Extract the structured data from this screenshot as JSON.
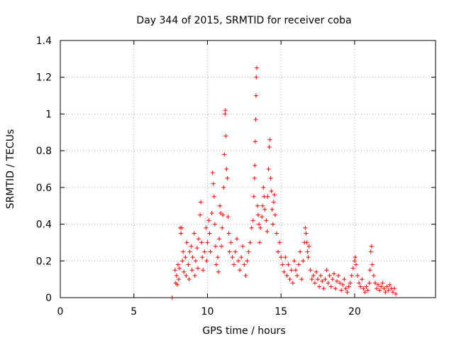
{
  "chart_data": {
    "type": "scatter",
    "title": "Day 344 of 2015, SRMTID for receiver coba",
    "xlabel": "GPS time / hours",
    "ylabel": "SRMTID / TECUs",
    "xlim": [
      0,
      25.5
    ],
    "ylim": [
      0,
      1.4
    ],
    "xticks": [
      0,
      5,
      10,
      15,
      20
    ],
    "xtick_labels": [
      "0",
      "5",
      "10",
      "15",
      "20"
    ],
    "yticks": [
      0,
      0.2,
      0.4,
      0.6,
      0.8,
      1.0,
      1.2,
      1.4
    ],
    "ytick_labels": [
      "0",
      "0.2",
      "0.4",
      "0.6",
      "0.8",
      "1",
      "1.2",
      "1.4"
    ],
    "grid": true,
    "marker": "+",
    "color": "#ff0000",
    "series": [
      {
        "name": "SRMTID",
        "points": [
          [
            7.6,
            0.0
          ],
          [
            7.8,
            0.15
          ],
          [
            7.85,
            0.08
          ],
          [
            7.9,
            0.12
          ],
          [
            7.95,
            0.07
          ],
          [
            8.0,
            0.18
          ],
          [
            8.05,
            0.1
          ],
          [
            8.1,
            0.16
          ],
          [
            8.15,
            0.38
          ],
          [
            8.2,
            0.35
          ],
          [
            8.25,
            0.38
          ],
          [
            8.3,
            0.2
          ],
          [
            8.35,
            0.25
          ],
          [
            8.4,
            0.14
          ],
          [
            8.5,
            0.22
          ],
          [
            8.55,
            0.12
          ],
          [
            8.6,
            0.3
          ],
          [
            8.7,
            0.18
          ],
          [
            8.75,
            0.1
          ],
          [
            8.8,
            0.25
          ],
          [
            8.9,
            0.28
          ],
          [
            8.95,
            0.15
          ],
          [
            9.0,
            0.22
          ],
          [
            9.1,
            0.35
          ],
          [
            9.15,
            0.12
          ],
          [
            9.2,
            0.2
          ],
          [
            9.3,
            0.27
          ],
          [
            9.35,
            0.16
          ],
          [
            9.4,
            0.32
          ],
          [
            9.5,
            0.45
          ],
          [
            9.55,
            0.52
          ],
          [
            9.6,
            0.3
          ],
          [
            9.65,
            0.22
          ],
          [
            9.7,
            0.15
          ],
          [
            9.8,
            0.25
          ],
          [
            9.9,
            0.38
          ],
          [
            9.95,
            0.2
          ],
          [
            10.0,
            0.3
          ],
          [
            10.1,
            0.42
          ],
          [
            10.15,
            0.35
          ],
          [
            10.2,
            0.25
          ],
          [
            10.3,
            0.46
          ],
          [
            10.35,
            0.68
          ],
          [
            10.4,
            0.62
          ],
          [
            10.45,
            0.55
          ],
          [
            10.5,
            0.4
          ],
          [
            10.55,
            0.28
          ],
          [
            10.6,
            0.18
          ],
          [
            10.7,
            0.22
          ],
          [
            10.75,
            0.14
          ],
          [
            10.8,
            0.32
          ],
          [
            10.85,
            0.5
          ],
          [
            10.9,
            0.46
          ],
          [
            10.95,
            0.28
          ],
          [
            11.0,
            0.38
          ],
          [
            11.05,
            0.45
          ],
          [
            11.1,
            0.6
          ],
          [
            11.15,
            0.78
          ],
          [
            11.2,
            1.0
          ],
          [
            11.22,
            1.02
          ],
          [
            11.25,
            0.88
          ],
          [
            11.3,
            0.7
          ],
          [
            11.35,
            0.65
          ],
          [
            11.4,
            0.44
          ],
          [
            11.45,
            0.35
          ],
          [
            11.5,
            0.25
          ],
          [
            11.6,
            0.3
          ],
          [
            11.7,
            0.22
          ],
          [
            11.8,
            0.18
          ],
          [
            11.9,
            0.25
          ],
          [
            12.0,
            0.32
          ],
          [
            12.1,
            0.2
          ],
          [
            12.2,
            0.15
          ],
          [
            12.3,
            0.22
          ],
          [
            12.4,
            0.28
          ],
          [
            12.5,
            0.18
          ],
          [
            12.6,
            0.12
          ],
          [
            12.7,
            0.2
          ],
          [
            12.8,
            0.25
          ],
          [
            12.9,
            0.3
          ],
          [
            13.0,
            0.38
          ],
          [
            13.1,
            0.42
          ],
          [
            13.15,
            0.55
          ],
          [
            13.2,
            0.65
          ],
          [
            13.22,
            0.72
          ],
          [
            13.25,
            0.85
          ],
          [
            13.28,
            0.97
          ],
          [
            13.3,
            1.1
          ],
          [
            13.32,
            1.2
          ],
          [
            13.35,
            1.25
          ],
          [
            13.4,
            0.5
          ],
          [
            13.45,
            0.45
          ],
          [
            13.5,
            0.4
          ],
          [
            13.55,
            0.3
          ],
          [
            13.6,
            0.38
          ],
          [
            13.7,
            0.44
          ],
          [
            13.75,
            0.5
          ],
          [
            13.8,
            0.6
          ],
          [
            13.85,
            0.55
          ],
          [
            13.9,
            0.48
          ],
          [
            14.0,
            0.42
          ],
          [
            14.05,
            0.36
          ],
          [
            14.1,
            0.55
          ],
          [
            14.15,
            0.7
          ],
          [
            14.2,
            0.82
          ],
          [
            14.25,
            0.86
          ],
          [
            14.3,
            0.65
          ],
          [
            14.35,
            0.58
          ],
          [
            14.4,
            0.48
          ],
          [
            14.45,
            0.4
          ],
          [
            14.5,
            0.52
          ],
          [
            14.55,
            0.56
          ],
          [
            14.6,
            0.45
          ],
          [
            14.7,
            0.35
          ],
          [
            14.8,
            0.25
          ],
          [
            14.9,
            0.3
          ],
          [
            15.0,
            0.22
          ],
          [
            15.1,
            0.18
          ],
          [
            15.2,
            0.14
          ],
          [
            15.3,
            0.22
          ],
          [
            15.4,
            0.12
          ],
          [
            15.5,
            0.18
          ],
          [
            15.6,
            0.1
          ],
          [
            15.7,
            0.15
          ],
          [
            15.8,
            0.08
          ],
          [
            15.9,
            0.2
          ],
          [
            16.0,
            0.15
          ],
          [
            16.1,
            0.12
          ],
          [
            16.2,
            0.18
          ],
          [
            16.3,
            0.25
          ],
          [
            16.4,
            0.1
          ],
          [
            16.5,
            0.2
          ],
          [
            16.6,
            0.3
          ],
          [
            16.65,
            0.38
          ],
          [
            16.7,
            0.35
          ],
          [
            16.75,
            0.3
          ],
          [
            16.8,
            0.25
          ],
          [
            16.85,
            0.22
          ],
          [
            16.9,
            0.28
          ],
          [
            17.0,
            0.15
          ],
          [
            17.1,
            0.1
          ],
          [
            17.2,
            0.12
          ],
          [
            17.3,
            0.08
          ],
          [
            17.4,
            0.14
          ],
          [
            17.5,
            0.1
          ],
          [
            17.6,
            0.06
          ],
          [
            17.7,
            0.12
          ],
          [
            17.8,
            0.09
          ],
          [
            17.9,
            0.05
          ],
          [
            18.0,
            0.1
          ],
          [
            18.1,
            0.15
          ],
          [
            18.2,
            0.08
          ],
          [
            18.3,
            0.12
          ],
          [
            18.4,
            0.06
          ],
          [
            18.5,
            0.1
          ],
          [
            18.6,
            0.13
          ],
          [
            18.7,
            0.05
          ],
          [
            18.8,
            0.09
          ],
          [
            18.9,
            0.12
          ],
          [
            19.0,
            0.08
          ],
          [
            19.1,
            0.04
          ],
          [
            19.2,
            0.07
          ],
          [
            19.3,
            0.1
          ],
          [
            19.4,
            0.05
          ],
          [
            19.5,
            0.03
          ],
          [
            19.6,
            0.06
          ],
          [
            19.7,
            0.08
          ],
          [
            19.8,
            0.12
          ],
          [
            19.9,
            0.16
          ],
          [
            20.0,
            0.2
          ],
          [
            20.05,
            0.22
          ],
          [
            20.1,
            0.18
          ],
          [
            20.2,
            0.12
          ],
          [
            20.3,
            0.08
          ],
          [
            20.4,
            0.06
          ],
          [
            20.5,
            0.1
          ],
          [
            20.6,
            0.05
          ],
          [
            20.7,
            0.03
          ],
          [
            20.8,
            0.06
          ],
          [
            20.9,
            0.04
          ],
          [
            21.0,
            0.08
          ],
          [
            21.05,
            0.15
          ],
          [
            21.1,
            0.25
          ],
          [
            21.15,
            0.28
          ],
          [
            21.2,
            0.18
          ],
          [
            21.3,
            0.12
          ],
          [
            21.4,
            0.08
          ],
          [
            21.5,
            0.05
          ],
          [
            21.6,
            0.07
          ],
          [
            21.7,
            0.04
          ],
          [
            21.8,
            0.06
          ],
          [
            21.9,
            0.08
          ],
          [
            22.0,
            0.05
          ],
          [
            22.1,
            0.03
          ],
          [
            22.2,
            0.06
          ],
          [
            22.3,
            0.04
          ],
          [
            22.4,
            0.07
          ],
          [
            22.5,
            0.05
          ],
          [
            22.6,
            0.03
          ],
          [
            22.7,
            0.05
          ],
          [
            22.8,
            0.02
          ]
        ]
      }
    ]
  }
}
